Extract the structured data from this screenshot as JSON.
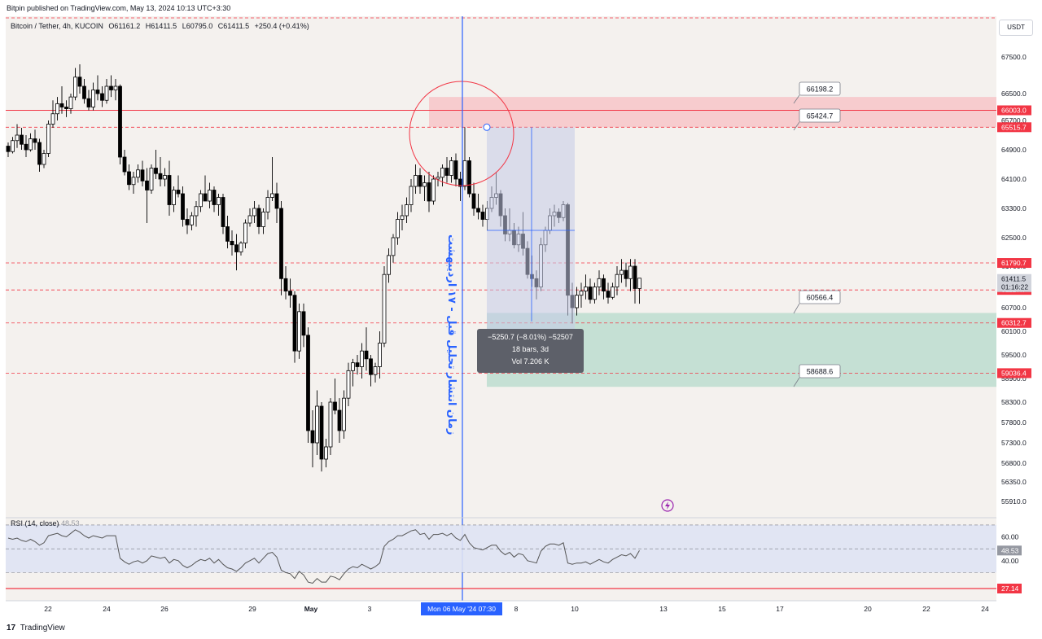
{
  "header": {
    "published": "Bitpin published on TradingView.com, May 13, 2024 10:13 UTC+3:30"
  },
  "legend": {
    "symbol": "Bitcoin / Tether, 4h, KUCOIN",
    "open": "O61161.2",
    "high": "H61411.5",
    "low": "L60795.0",
    "close": "C61411.5",
    "change": "+250.4 (+0.41%)"
  },
  "currency_button": "USDT",
  "annotation_text": "زمان انتشار تحلیل قبل - ۱۷ اردیبهشت",
  "measure": {
    "line1": "−5250.7 (−8.01%) −52507",
    "line2": "18 bars, 3d",
    "line3": "Vol 7.206 K"
  },
  "callouts": [
    "66198.2",
    "65424.7",
    "60566.4",
    "58688.6"
  ],
  "rsi_legend": {
    "label": "RSI (14, close)",
    "value": "48.53"
  },
  "footer": {
    "logo": "17",
    "brand": "TradingView"
  },
  "time_badge": "Mon 06 May '24   07:30",
  "chart_data": [
    {
      "type": "candlestick",
      "title": "Bitcoin / Tether, 4h, KUCOIN",
      "ylim": [
        55500,
        68500
      ],
      "y_ticks": [
        67500,
        66500,
        65700,
        64900,
        64100,
        63300,
        62500,
        61700,
        60700,
        60100,
        59500,
        58900,
        58300,
        57800,
        57300,
        56800,
        56350,
        55910
      ],
      "y_tick_labels": [
        "67500.0",
        "66500.0",
        "65700.0",
        "64900.0",
        "64100.0",
        "63300.0",
        "62500.0",
        "61700.0",
        "60700.0",
        "60100.0",
        "59500.0",
        "58900.0",
        "58300.0",
        "57800.0",
        "57300.0",
        "56800.0",
        "56350.0",
        "55910.0"
      ],
      "x_ticks": [
        "22",
        "24",
        "26",
        "29",
        "May",
        "3",
        "8",
        "10",
        "13",
        "15",
        "17",
        "20",
        "22",
        "24"
      ],
      "price_labels": [
        {
          "value": "66003.0",
          "color": "#f23645"
        },
        {
          "value": "65515.7",
          "color": "#f23645"
        },
        {
          "value": "61790.7",
          "color": "#f23645"
        },
        {
          "value": "61127.7",
          "color": "#f23645"
        },
        {
          "value": "60312.7",
          "color": "#f23645"
        },
        {
          "value": "59036.4",
          "color": "#f23645"
        },
        {
          "value": "61411.5",
          "color": "#d1d4dc"
        },
        {
          "value": "01:16:22",
          "color": "#d1d4dc"
        }
      ],
      "candles": [
        [
          65000,
          65100,
          64700,
          64850
        ],
        [
          64850,
          65250,
          64800,
          65150
        ],
        [
          65150,
          65600,
          64950,
          65300
        ],
        [
          65300,
          65500,
          64900,
          65050
        ],
        [
          65050,
          65300,
          64700,
          64900
        ],
        [
          64900,
          65350,
          64850,
          65200
        ],
        [
          65200,
          65450,
          64900,
          65100
        ],
        [
          65100,
          65200,
          64300,
          64500
        ],
        [
          64500,
          64900,
          64400,
          64800
        ],
        [
          64800,
          65700,
          64700,
          65600
        ],
        [
          65600,
          66300,
          65500,
          65900
        ],
        [
          65900,
          66400,
          65700,
          66200
        ],
        [
          66200,
          66700,
          65900,
          66100
        ],
        [
          66100,
          66300,
          65800,
          66050
        ],
        [
          66050,
          66500,
          65900,
          66400
        ],
        [
          66400,
          67200,
          66300,
          66950
        ],
        [
          66950,
          67300,
          66500,
          66700
        ],
        [
          66700,
          66900,
          66200,
          66350
        ],
        [
          66350,
          66600,
          66000,
          66100
        ],
        [
          66100,
          66800,
          66000,
          66600
        ],
        [
          66600,
          67000,
          66300,
          66500
        ],
        [
          66500,
          66700,
          66100,
          66300
        ],
        [
          66300,
          66900,
          66200,
          66700
        ],
        [
          66700,
          67000,
          66400,
          66600
        ],
        [
          66600,
          66900,
          66300,
          66700
        ],
        [
          66700,
          66750,
          64500,
          64700
        ],
        [
          64700,
          64900,
          64200,
          64300
        ],
        [
          64300,
          64500,
          63800,
          63950
        ],
        [
          63950,
          64300,
          63700,
          64150
        ],
        [
          64150,
          64500,
          64000,
          64350
        ],
        [
          64350,
          64600,
          63900,
          64050
        ],
        [
          64050,
          64400,
          62900,
          63800
        ],
        [
          63800,
          64500,
          63700,
          64400
        ],
        [
          64400,
          64900,
          64100,
          64250
        ],
        [
          64250,
          64700,
          63900,
          64100
        ],
        [
          64100,
          64400,
          63900,
          64200
        ],
        [
          64200,
          64600,
          63100,
          63400
        ],
        [
          63400,
          63900,
          63200,
          63800
        ],
        [
          63800,
          64200,
          63600,
          63700
        ],
        [
          63700,
          63900,
          62800,
          63000
        ],
        [
          63000,
          63300,
          62600,
          62850
        ],
        [
          62850,
          63200,
          62700,
          63100
        ],
        [
          63100,
          63500,
          62800,
          63350
        ],
        [
          63350,
          63800,
          63200,
          63700
        ],
        [
          63700,
          64200,
          63500,
          63500
        ],
        [
          63500,
          64000,
          63300,
          63800
        ],
        [
          63800,
          63900,
          63200,
          63400
        ],
        [
          63400,
          63700,
          63100,
          63600
        ],
        [
          63600,
          63700,
          62600,
          62800
        ],
        [
          62800,
          63100,
          62200,
          62400
        ],
        [
          62400,
          62700,
          62000,
          62300
        ],
        [
          62300,
          62600,
          61600,
          62100
        ],
        [
          62100,
          62400,
          62000,
          62350
        ],
        [
          62350,
          63000,
          62200,
          62900
        ],
        [
          62900,
          63300,
          62800,
          63100
        ],
        [
          63100,
          63500,
          62900,
          63300
        ],
        [
          63300,
          63400,
          62600,
          62800
        ],
        [
          62800,
          63300,
          62600,
          63200
        ],
        [
          63200,
          63800,
          63000,
          63600
        ],
        [
          63600,
          64700,
          63500,
          63700
        ],
        [
          63700,
          64000,
          62900,
          63300
        ],
        [
          63300,
          63500,
          61000,
          61400
        ],
        [
          61400,
          61700,
          60900,
          61100
        ],
        [
          61100,
          61400,
          60700,
          61000
        ],
        [
          61000,
          61100,
          59300,
          59600
        ],
        [
          59600,
          60800,
          59400,
          60600
        ],
        [
          60600,
          60800,
          59700,
          60000
        ],
        [
          60000,
          60200,
          57300,
          57600
        ],
        [
          57600,
          58100,
          56700,
          57300
        ],
        [
          57300,
          58600,
          57000,
          58200
        ],
        [
          58200,
          58300,
          56600,
          56900
        ],
        [
          56900,
          57400,
          56700,
          57200
        ],
        [
          57200,
          58400,
          57000,
          58300
        ],
        [
          58300,
          58900,
          58000,
          58100
        ],
        [
          58100,
          58400,
          57300,
          57600
        ],
        [
          57600,
          58600,
          57400,
          58400
        ],
        [
          58400,
          59300,
          58200,
          59100
        ],
        [
          59100,
          59400,
          58700,
          59300
        ],
        [
          59300,
          59500,
          59000,
          59200
        ],
        [
          59200,
          59800,
          58900,
          59600
        ],
        [
          59600,
          60200,
          59100,
          59400
        ],
        [
          59400,
          59500,
          58700,
          59000
        ],
        [
          59000,
          59300,
          58800,
          59200
        ],
        [
          59200,
          60100,
          58900,
          59800
        ],
        [
          59800,
          61700,
          59700,
          61500
        ],
        [
          61500,
          62200,
          61300,
          62000
        ],
        [
          62000,
          62600,
          61800,
          62500
        ],
        [
          62500,
          63200,
          62300,
          63000
        ],
        [
          63000,
          63400,
          62700,
          63100
        ],
        [
          63100,
          63600,
          62900,
          63400
        ],
        [
          63400,
          64100,
          63200,
          63900
        ],
        [
          63900,
          64500,
          63700,
          64200
        ],
        [
          64200,
          64400,
          63700,
          63900
        ],
        [
          63900,
          64200,
          63500,
          64000
        ],
        [
          64000,
          64300,
          63200,
          63500
        ],
        [
          63500,
          64200,
          63400,
          64100
        ],
        [
          64100,
          64300,
          63900,
          64150
        ],
        [
          64150,
          64500,
          63900,
          64400
        ],
        [
          64400,
          64700,
          64000,
          64200
        ],
        [
          64200,
          64700,
          64000,
          64600
        ],
        [
          64600,
          64800,
          63900,
          64100
        ],
        [
          64100,
          64300,
          63500,
          63900
        ],
        [
          63900,
          65515,
          63800,
          64600
        ],
        [
          64600,
          64700,
          63600,
          63700
        ],
        [
          63700,
          64000,
          63100,
          63300
        ],
        [
          63300,
          63700,
          63000,
          63200
        ],
        [
          63200,
          63400,
          62800,
          63000
        ],
        [
          63000,
          63500,
          62700,
          63300
        ],
        [
          63300,
          63900,
          63200,
          63600
        ],
        [
          63600,
          64300,
          63400,
          63700
        ],
        [
          63700,
          63800,
          62800,
          63100
        ],
        [
          63100,
          63300,
          62400,
          62600
        ],
        [
          62600,
          63300,
          62400,
          62700
        ],
        [
          62700,
          62900,
          62200,
          62300
        ],
        [
          62300,
          62800,
          62100,
          62600
        ],
        [
          62600,
          63200,
          62000,
          62200
        ],
        [
          62200,
          62400,
          61400,
          61500
        ],
        [
          61500,
          62000,
          61200,
          61400
        ],
        [
          61400,
          61600,
          60900,
          61200
        ],
        [
          61200,
          62500,
          61100,
          62300
        ],
        [
          62300,
          62800,
          62100,
          62700
        ],
        [
          62700,
          63300,
          62600,
          63100
        ],
        [
          63100,
          63400,
          62800,
          63200
        ],
        [
          63200,
          63300,
          62900,
          63050
        ],
        [
          63050,
          63500,
          62950,
          63400
        ],
        [
          63400,
          63450,
          60500,
          61000
        ],
        [
          61000,
          61300,
          60300,
          60700
        ],
        [
          60700,
          61200,
          60500,
          61000
        ],
        [
          61000,
          61300,
          60700,
          61100
        ],
        [
          61100,
          61500,
          60900,
          61200
        ],
        [
          61200,
          61400,
          60800,
          60900
        ],
        [
          60900,
          61300,
          60800,
          61200
        ],
        [
          61200,
          61600,
          61000,
          61400
        ],
        [
          61400,
          61500,
          60900,
          61100
        ],
        [
          61100,
          61300,
          60800,
          60950
        ],
        [
          60950,
          61300,
          60900,
          61200
        ],
        [
          61200,
          61700,
          61000,
          61500
        ],
        [
          61500,
          61900,
          61300,
          61600
        ],
        [
          61600,
          61800,
          61200,
          61400
        ],
        [
          61400,
          61900,
          61100,
          61700
        ],
        [
          61700,
          61900,
          60800,
          61161
        ],
        [
          61161,
          61411,
          60795,
          61411
        ]
      ],
      "rsi": {
        "ylim": [
          20,
          72
        ],
        "y_ticks": [
          "60.00",
          "40.00"
        ],
        "values": [
          59,
          58,
          59,
          57,
          56,
          58,
          56,
          53,
          55,
          61,
          62,
          63,
          61,
          60,
          63,
          66,
          64,
          61,
          59,
          61,
          60,
          59,
          61,
          61,
          61,
          42,
          39,
          37,
          39,
          40,
          38,
          40,
          44,
          43,
          42,
          43,
          38,
          41,
          40,
          36,
          34,
          36,
          39,
          41,
          40,
          42,
          38,
          41,
          37,
          34,
          33,
          31,
          34,
          38,
          40,
          42,
          38,
          42,
          46,
          47,
          43,
          32,
          30,
          29,
          25,
          31,
          28,
          22,
          21,
          25,
          22,
          22,
          27,
          26,
          24,
          29,
          33,
          35,
          34,
          37,
          35,
          33,
          35,
          38,
          52,
          56,
          58,
          61,
          61,
          63,
          65,
          66,
          62,
          63,
          58,
          62,
          62,
          63,
          61,
          63,
          59,
          57,
          62,
          55,
          51,
          50,
          49,
          51,
          53,
          53,
          48,
          45,
          47,
          43,
          46,
          45,
          40,
          39,
          38,
          48,
          52,
          54,
          54,
          53,
          55,
          38,
          37,
          38,
          38,
          39,
          37,
          39,
          41,
          39,
          38,
          41,
          43,
          45,
          44,
          46,
          42,
          48.53
        ],
        "last_value": "48.53",
        "lower_label": "27.14"
      },
      "zones": [
        {
          "name": "resistance",
          "from": 65515.7,
          "to": 66400
        },
        {
          "name": "support",
          "from": 58688.6,
          "to": 60566.4
        }
      ]
    }
  ]
}
